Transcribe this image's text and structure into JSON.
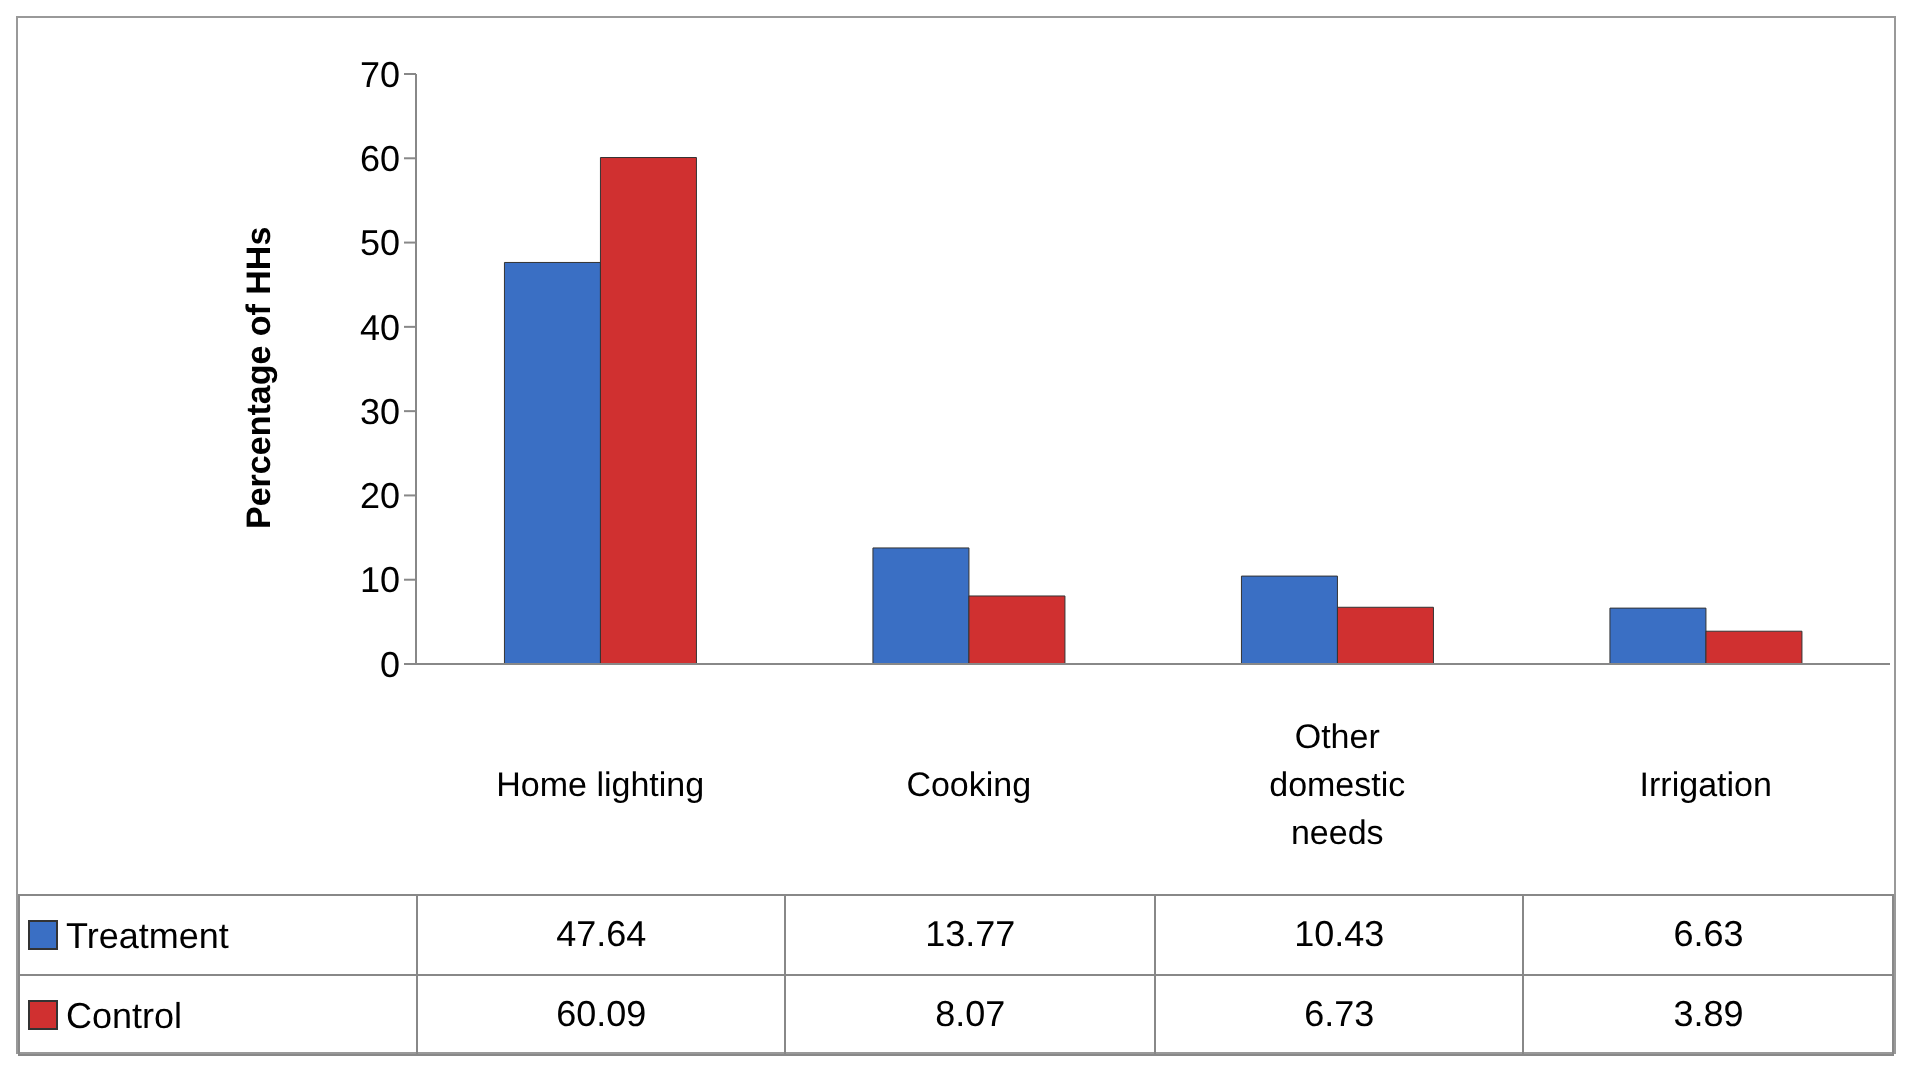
{
  "chart_data": {
    "type": "bar",
    "ylabel": "Percentage of HHs",
    "categories": [
      "Home lighting",
      "Cooking",
      "Other domestic needs",
      "Irrigation"
    ],
    "series": [
      {
        "name": "Treatment",
        "color": "#3a6fc4",
        "values": [
          47.64,
          13.77,
          10.43,
          6.63
        ]
      },
      {
        "name": "Control",
        "color": "#d03030",
        "values": [
          60.09,
          8.07,
          6.73,
          3.89
        ]
      }
    ],
    "ylim": [
      0,
      70
    ],
    "yticks": [
      0,
      10,
      20,
      30,
      40,
      50,
      60,
      70
    ],
    "legend": "bottom left",
    "data_labels": true
  }
}
